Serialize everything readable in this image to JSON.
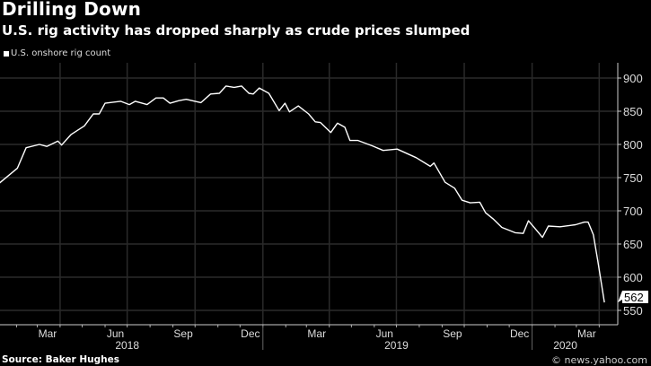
{
  "chart_data": {
    "type": "line",
    "title": "Drilling Down",
    "subtitle": "U.S. rig activity has dropped sharply as crude prices slumped",
    "legend": {
      "entries": [
        "U.S. onshore rig count"
      ],
      "placement": "top-left"
    },
    "source": "Source: Baker Hughes",
    "watermark": "© news.yahoo.com",
    "colors": {
      "background": "#000000",
      "line": "#ffffff",
      "grid": "#2a2a2a"
    },
    "y_axis": {
      "position": "right",
      "ticks": [
        550,
        600,
        650,
        700,
        750,
        800,
        850,
        900
      ],
      "ylim": [
        540,
        905
      ]
    },
    "x_axis": {
      "month_labels": [
        {
          "label": "Mar",
          "date": "2018-03-15"
        },
        {
          "label": "Jun",
          "date": "2018-06-15"
        },
        {
          "label": "Sep",
          "date": "2018-09-15"
        },
        {
          "label": "Dec",
          "date": "2018-12-15"
        },
        {
          "label": "Mar",
          "date": "2019-03-15"
        },
        {
          "label": "Jun",
          "date": "2019-06-15"
        },
        {
          "label": "Sep",
          "date": "2019-09-15"
        },
        {
          "label": "Dec",
          "date": "2019-12-15"
        },
        {
          "label": "Mar",
          "date": "2020-03-15"
        }
      ],
      "year_labels": [
        {
          "label": "2018",
          "date": "2018-07-01"
        },
        {
          "label": "2019",
          "date": "2019-07-01"
        },
        {
          "label": "2020",
          "date": "2020-02-15"
        }
      ]
    },
    "grid": true,
    "last_value_label": "562",
    "series": [
      {
        "name": "U.S. onshore rig count",
        "points": [
          [
            "2018-01-09",
            742
          ],
          [
            "2018-02-02",
            764
          ],
          [
            "2018-02-14",
            795
          ],
          [
            "2018-03-04",
            800
          ],
          [
            "2018-03-14",
            797
          ],
          [
            "2018-03-29",
            805
          ],
          [
            "2018-04-03",
            799
          ],
          [
            "2018-04-16",
            815
          ],
          [
            "2018-05-04",
            828
          ],
          [
            "2018-05-16",
            846
          ],
          [
            "2018-05-24",
            846
          ],
          [
            "2018-06-01",
            862
          ],
          [
            "2018-06-22",
            865
          ],
          [
            "2018-07-04",
            860
          ],
          [
            "2018-07-12",
            865
          ],
          [
            "2018-07-28",
            860
          ],
          [
            "2018-08-09",
            870
          ],
          [
            "2018-08-19",
            870
          ],
          [
            "2018-08-28",
            862
          ],
          [
            "2018-09-09",
            866
          ],
          [
            "2018-09-19",
            868
          ],
          [
            "2018-10-09",
            863
          ],
          [
            "2018-10-22",
            876
          ],
          [
            "2018-11-03",
            877
          ],
          [
            "2018-11-12",
            888
          ],
          [
            "2018-11-23",
            886
          ],
          [
            "2018-12-03",
            888
          ],
          [
            "2018-12-13",
            877
          ],
          [
            "2018-12-19",
            876
          ],
          [
            "2018-12-27",
            885
          ],
          [
            "2019-01-09",
            877
          ],
          [
            "2019-01-23",
            851
          ],
          [
            "2019-01-31",
            862
          ],
          [
            "2019-02-06",
            849
          ],
          [
            "2019-02-18",
            858
          ],
          [
            "2019-03-04",
            846
          ],
          [
            "2019-03-13",
            834
          ],
          [
            "2019-03-20",
            833
          ],
          [
            "2019-04-03",
            818
          ],
          [
            "2019-04-12",
            832
          ],
          [
            "2019-04-22",
            826
          ],
          [
            "2019-04-29",
            806
          ],
          [
            "2019-05-10",
            806
          ],
          [
            "2019-05-29",
            798
          ],
          [
            "2019-06-13",
            791
          ],
          [
            "2019-07-02",
            793
          ],
          [
            "2019-07-28",
            780
          ],
          [
            "2019-08-16",
            767
          ],
          [
            "2019-08-21",
            772
          ],
          [
            "2019-09-05",
            743
          ],
          [
            "2019-09-18",
            734
          ],
          [
            "2019-09-28",
            716
          ],
          [
            "2019-10-09",
            712
          ],
          [
            "2019-10-22",
            713
          ],
          [
            "2019-10-30",
            697
          ],
          [
            "2019-11-09",
            688
          ],
          [
            "2019-11-21",
            675
          ],
          [
            "2019-12-09",
            667
          ],
          [
            "2019-12-20",
            666
          ],
          [
            "2019-12-27",
            685
          ],
          [
            "2020-01-06",
            672
          ],
          [
            "2020-01-15",
            660
          ],
          [
            "2020-01-23",
            677
          ],
          [
            "2020-02-08",
            676
          ],
          [
            "2020-02-29",
            679
          ],
          [
            "2020-03-12",
            683
          ],
          [
            "2020-03-17",
            683
          ],
          [
            "2020-03-24",
            664
          ],
          [
            "2020-03-30",
            625
          ],
          [
            "2020-04-08",
            562
          ]
        ]
      }
    ]
  }
}
